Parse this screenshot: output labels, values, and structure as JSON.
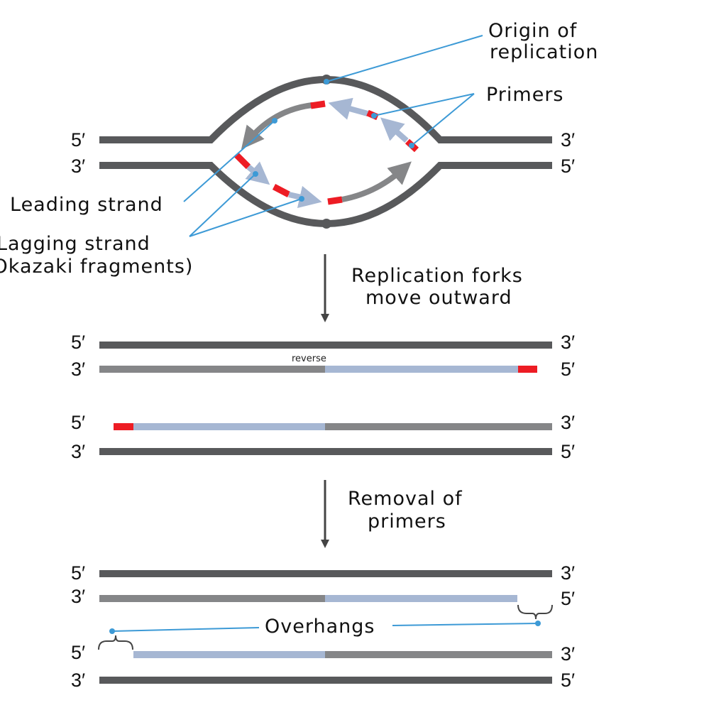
{
  "colors": {
    "parent_strand": "#58595b",
    "new_strand": "#858688",
    "okazaki": "#a6b7d3",
    "primer": "#ed1c24",
    "callout": "#3d9ad6"
  },
  "labels": {
    "five_prime": "5′",
    "three_prime": "3′"
  },
  "top": {
    "origin_line1": "Origin of",
    "origin_line2": "replication",
    "primers": "Primers",
    "leading": "Leading strand",
    "lagging_line1": "Lagging strand",
    "lagging_line2": "(Okazaki fragments)"
  },
  "step1": {
    "line1": "Replication forks",
    "line2": "move outward"
  },
  "middle": {
    "reverse": "reverse"
  },
  "step2": {
    "line1": "Removal of",
    "line2": "primers"
  },
  "bottom": {
    "overhangs": "Overhangs"
  }
}
